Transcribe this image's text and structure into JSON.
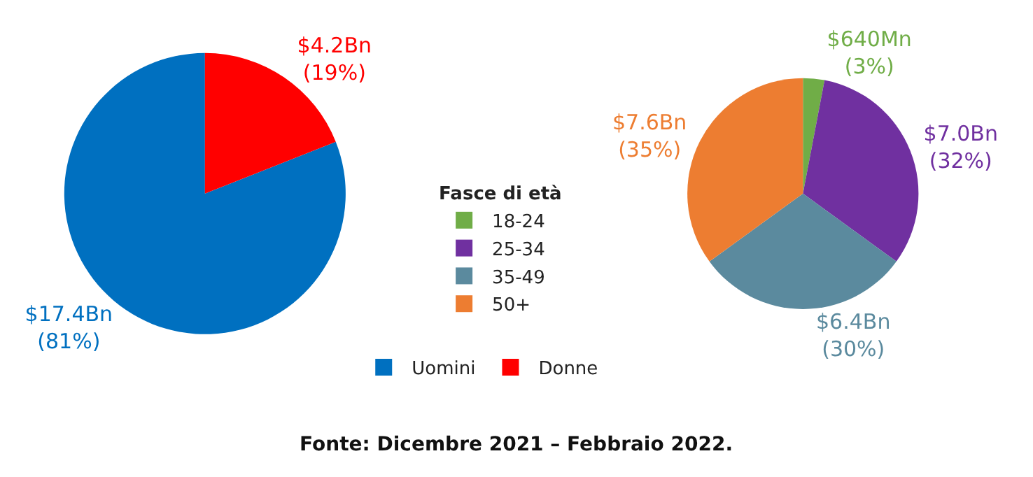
{
  "chart_data": [
    {
      "type": "pie",
      "categories": [
        "Uomini",
        "Donne"
      ],
      "values": [
        81,
        19
      ],
      "colors": [
        "#0070c0",
        "#ff0000"
      ],
      "value_labels": [
        "$17.4Bn\n(81%)",
        "$4.2Bn\n(19%)"
      ],
      "legend": "bottom right",
      "annotations": [
        "Fonte: Dicembre 2021 – Febbraio 2022."
      ]
    },
    {
      "type": "pie",
      "categories": [
        "18-24",
        "25-34",
        "35-49",
        "50+"
      ],
      "values": [
        3,
        32,
        30,
        35
      ],
      "colors": [
        "#70ad47",
        "#7030a0",
        "#5b8a9e",
        "#ed7d31"
      ],
      "value_labels": [
        "$640Mn\n(3%)",
        "$7.0Bn\n(32%)",
        "$6.4Bn\n(30%)",
        "$7.6Bn\n(35%)"
      ],
      "legend": "bottom left",
      "legend_title": "Fasce di età"
    }
  ]
}
